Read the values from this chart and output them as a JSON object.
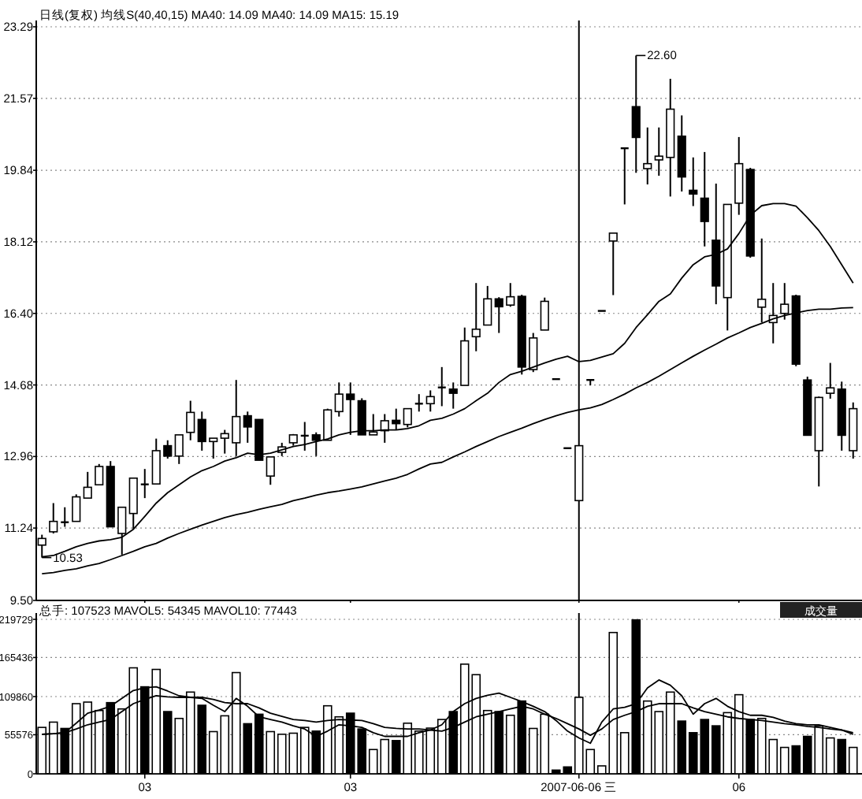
{
  "chart_data": [
    {
      "type": "candlestick",
      "title": "日线(复权)  均线S(40,40,15) MA40: 14.09 MA40: 14.09 MA15: 15.19",
      "categories": [
        null,
        null,
        null,
        null,
        null,
        null,
        null,
        null,
        null,
        "03",
        null,
        null,
        null,
        null,
        null,
        null,
        null,
        null,
        null,
        null,
        null,
        null,
        null,
        null,
        null,
        null,
        null,
        "03",
        null,
        null,
        null,
        null,
        null,
        null,
        null,
        null,
        null,
        null,
        null,
        null,
        null,
        null,
        null,
        null,
        null,
        null,
        null,
        "2007-06-06 三",
        null,
        null,
        null,
        null,
        null,
        null,
        null,
        null,
        null,
        null,
        null,
        null,
        null,
        "06",
        null,
        null,
        null,
        null,
        null,
        null,
        null,
        null,
        null,
        null
      ],
      "ohlc": [
        [
          10.83,
          11.08,
          10.53,
          10.99
        ],
        [
          11.15,
          11.84,
          11.11,
          11.4
        ],
        [
          11.38,
          11.74,
          11.27,
          11.37
        ],
        [
          11.4,
          12.05,
          11.4,
          11.99
        ],
        [
          11.96,
          12.59,
          11.96,
          12.22
        ],
        [
          12.28,
          12.78,
          12.28,
          12.72
        ],
        [
          12.72,
          12.85,
          11.27,
          11.27
        ],
        [
          11.11,
          11.74,
          10.6,
          11.74
        ],
        [
          11.59,
          12.44,
          11.21,
          12.44
        ],
        [
          12.29,
          12.66,
          11.96,
          12.27
        ],
        [
          12.3,
          13.39,
          12.3,
          13.1
        ],
        [
          13.22,
          13.35,
          12.91,
          12.97
        ],
        [
          12.97,
          13.48,
          12.78,
          13.48
        ],
        [
          13.54,
          14.3,
          13.35,
          14.02
        ],
        [
          13.85,
          14.04,
          13.1,
          13.32
        ],
        [
          13.32,
          13.4,
          12.91,
          13.4
        ],
        [
          13.4,
          13.6,
          13.03,
          13.51
        ],
        [
          13.29,
          14.8,
          12.97,
          13.92
        ],
        [
          13.94,
          14.04,
          13.29,
          13.67
        ],
        [
          13.85,
          13.85,
          12.87,
          12.87
        ],
        [
          12.49,
          12.95,
          12.28,
          12.95
        ],
        [
          13.06,
          13.29,
          12.97,
          13.19
        ],
        [
          13.29,
          13.5,
          13.22,
          13.48
        ],
        [
          13.45,
          13.79,
          13.1,
          13.46
        ],
        [
          13.48,
          13.54,
          12.97,
          13.35
        ],
        [
          13.35,
          14.11,
          13.35,
          14.08
        ],
        [
          14.04,
          14.74,
          13.92,
          14.46
        ],
        [
          14.46,
          14.74,
          13.48,
          14.33
        ],
        [
          14.3,
          14.36,
          13.48,
          13.48
        ],
        [
          13.48,
          13.98,
          13.48,
          13.55
        ],
        [
          13.58,
          13.98,
          13.29,
          13.82
        ],
        [
          13.83,
          14.11,
          13.6,
          13.75
        ],
        [
          13.73,
          14.11,
          13.66,
          14.11
        ],
        [
          14.22,
          14.46,
          14.04,
          14.23
        ],
        [
          14.23,
          14.55,
          14.04,
          14.4
        ],
        [
          14.6,
          15.11,
          14.17,
          14.62
        ],
        [
          14.58,
          14.74,
          14.11,
          14.48
        ],
        [
          14.67,
          16.06,
          14.67,
          15.74
        ],
        [
          15.84,
          17.13,
          15.49,
          16.02
        ],
        [
          16.12,
          17.06,
          16.12,
          16.75
        ],
        [
          16.75,
          16.79,
          15.93,
          16.56
        ],
        [
          16.6,
          17.13,
          16.56,
          16.8
        ],
        [
          16.81,
          16.85,
          14.93,
          15.11
        ],
        [
          15.05,
          15.93,
          14.99,
          15.81
        ],
        [
          16.0,
          16.78,
          16.0,
          16.69
        ],
        [
          14.82,
          14.82,
          14.82,
          14.82
        ],
        [
          13.16,
          13.16,
          13.16,
          13.16
        ],
        [
          11.9,
          13.22,
          11.9,
          13.22
        ],
        [
          14.8,
          14.8,
          14.67,
          14.8
        ],
        [
          16.46,
          16.46,
          16.46,
          16.46
        ],
        [
          18.14,
          18.33,
          16.84,
          18.33
        ],
        [
          20.37,
          20.37,
          19.02,
          20.37
        ],
        [
          21.37,
          22.6,
          19.78,
          20.63
        ],
        [
          19.88,
          20.87,
          19.5,
          20.0
        ],
        [
          20.09,
          20.87,
          19.71,
          20.18
        ],
        [
          20.15,
          22.04,
          19.21,
          21.31
        ],
        [
          20.66,
          21.16,
          19.33,
          19.68
        ],
        [
          19.36,
          20.15,
          18.98,
          19.27
        ],
        [
          19.17,
          20.28,
          18.01,
          18.61
        ],
        [
          18.16,
          19.52,
          16.62,
          17.06
        ],
        [
          16.78,
          19.02,
          15.99,
          19.02
        ],
        [
          19.05,
          20.64,
          18.77,
          20.0
        ],
        [
          19.86,
          19.9,
          17.74,
          17.78
        ],
        [
          16.55,
          18.2,
          16.18,
          16.74
        ],
        [
          16.18,
          17.13,
          15.68,
          16.35
        ],
        [
          16.4,
          17.13,
          16.25,
          16.62
        ],
        [
          16.82,
          16.85,
          15.13,
          15.18
        ],
        [
          14.8,
          14.88,
          13.47,
          13.47
        ],
        [
          13.1,
          14.4,
          12.24,
          14.38
        ],
        [
          14.48,
          15.21,
          14.35,
          14.61
        ],
        [
          14.58,
          14.76,
          13.1,
          13.47
        ],
        [
          13.1,
          14.26,
          12.91,
          14.11
        ]
      ],
      "colors": [
        "#ffffff",
        "#ffffff",
        "#000000",
        "#ffffff",
        "#ffffff",
        "#ffffff",
        "#000000",
        "#ffffff",
        "#ffffff",
        "#000000",
        "#ffffff",
        "#000000",
        "#ffffff",
        "#ffffff",
        "#000000",
        "#ffffff",
        "#ffffff",
        "#ffffff",
        "#000000",
        "#000000",
        "#ffffff",
        "#ffffff",
        "#ffffff",
        "#000000",
        "#000000",
        "#ffffff",
        "#ffffff",
        "#000000",
        "#000000",
        "#ffffff",
        "#ffffff",
        "#000000",
        "#ffffff",
        "#000000",
        "#ffffff",
        "#000000",
        "#000000",
        "#ffffff",
        "#ffffff",
        "#ffffff",
        "#000000",
        "#ffffff",
        "#000000",
        "#ffffff",
        "#ffffff",
        "#000000",
        "#000000",
        "#ffffff",
        "#000000",
        "#000000",
        "#ffffff",
        "#000000",
        "#000000",
        "#ffffff",
        "#ffffff",
        "#ffffff",
        "#000000",
        "#000000",
        "#000000",
        "#000000",
        "#ffffff",
        "#ffffff",
        "#000000",
        "#ffffff",
        "#ffffff",
        "#ffffff",
        "#000000",
        "#000000",
        "#ffffff",
        "#ffffff",
        "#000000",
        "#ffffff"
      ],
      "series": [
        {
          "type": "line",
          "color": "#000000",
          "values": [
            10.55,
            10.58,
            10.68,
            10.79,
            10.87,
            10.93,
            10.96,
            11.02,
            11.21,
            11.52,
            11.84,
            12.09,
            12.28,
            12.47,
            12.62,
            12.72,
            12.85,
            12.93,
            13.04,
            13.0,
            13.04,
            13.12,
            13.2,
            13.25,
            13.32,
            13.38,
            13.48,
            13.54,
            13.58,
            13.58,
            13.6,
            13.6,
            13.63,
            13.7,
            13.83,
            13.88,
            13.98,
            14.11,
            14.3,
            14.48,
            14.74,
            14.93,
            15.01,
            15.11,
            15.21,
            15.3,
            15.37,
            15.24,
            15.27,
            15.35,
            15.43,
            15.68,
            16.06,
            16.37,
            16.69,
            16.87,
            17.25,
            17.57,
            17.76,
            17.82,
            17.95,
            18.32,
            18.76,
            18.99,
            19.04,
            19.04,
            18.98,
            18.7,
            18.39,
            18.01,
            17.57,
            17.13
          ]
        },
        {
          "type": "line",
          "color": "#000000",
          "values": [
            10.14,
            10.17,
            10.22,
            10.26,
            10.33,
            10.39,
            10.48,
            10.58,
            10.68,
            10.79,
            10.87,
            11.0,
            11.11,
            11.21,
            11.31,
            11.4,
            11.49,
            11.56,
            11.62,
            11.69,
            11.75,
            11.81,
            11.9,
            11.96,
            12.03,
            12.09,
            12.13,
            12.18,
            12.23,
            12.3,
            12.37,
            12.44,
            12.53,
            12.66,
            12.78,
            12.82,
            12.95,
            13.07,
            13.2,
            13.32,
            13.44,
            13.54,
            13.64,
            13.75,
            13.85,
            13.94,
            14.02,
            14.08,
            14.13,
            14.21,
            14.33,
            14.46,
            14.61,
            14.74,
            14.89,
            15.05,
            15.21,
            15.37,
            15.52,
            15.66,
            15.81,
            15.93,
            16.06,
            16.16,
            16.27,
            16.35,
            16.41,
            16.47,
            16.5,
            16.5,
            16.53,
            16.54
          ]
        }
      ],
      "ylim": [
        9.5,
        23.29
      ],
      "yticks": [
        {
          "value": 9.5,
          "label": "9.50"
        },
        11.24,
        12.96,
        14.68,
        {
          "value": 16.4,
          "label": "16.40"
        },
        18.12,
        19.84,
        21.57,
        23.29
      ],
      "grid": "y",
      "tick_labels": "y",
      "ref_lines": [
        {
          "axis": "x",
          "value": "2007-06-06 三",
          "color": "#000000"
        }
      ],
      "annotations": [
        "22.60",
        "10.53"
      ]
    },
    {
      "type": "bar",
      "title": "总手: 107523 MAVOL5: 54345 MAVOL10: 77443",
      "categories": [
        null,
        null,
        null,
        null,
        null,
        null,
        null,
        null,
        null,
        "03",
        null,
        null,
        null,
        null,
        null,
        null,
        null,
        null,
        null,
        null,
        null,
        null,
        null,
        null,
        null,
        null,
        null,
        "03",
        null,
        null,
        null,
        null,
        null,
        null,
        null,
        null,
        null,
        null,
        null,
        null,
        null,
        null,
        null,
        null,
        null,
        null,
        null,
        "2007-06-06 三",
        null,
        null,
        null,
        null,
        null,
        null,
        null,
        null,
        null,
        null,
        null,
        null,
        null,
        "06",
        null,
        null,
        null,
        null,
        null,
        null,
        null,
        null,
        null,
        null
      ],
      "series": [
        {
          "type": "bar",
          "colors": [
            "#ffffff",
            "#ffffff",
            "#000000",
            "#ffffff",
            "#ffffff",
            "#ffffff",
            "#000000",
            "#ffffff",
            "#ffffff",
            "#000000",
            "#ffffff",
            "#000000",
            "#ffffff",
            "#ffffff",
            "#000000",
            "#ffffff",
            "#ffffff",
            "#ffffff",
            "#000000",
            "#000000",
            "#ffffff",
            "#ffffff",
            "#ffffff",
            "#ffffff",
            "#000000",
            "#ffffff",
            "#ffffff",
            "#000000",
            "#000000",
            "#ffffff",
            "#ffffff",
            "#000000",
            "#ffffff",
            "#ffffff",
            "#ffffff",
            "#ffffff",
            "#000000",
            "#ffffff",
            "#ffffff",
            "#ffffff",
            "#000000",
            "#ffffff",
            "#000000",
            "#ffffff",
            "#ffffff",
            "#000000",
            "#000000",
            "#ffffff",
            "#ffffff",
            "#ffffff",
            "#ffffff",
            "#ffffff",
            "#000000",
            "#ffffff",
            "#ffffff",
            "#ffffff",
            "#000000",
            "#000000",
            "#000000",
            "#000000",
            "#ffffff",
            "#ffffff",
            "#000000",
            "#ffffff",
            "#ffffff",
            "#ffffff",
            "#000000",
            "#000000",
            "#ffffff",
            "#ffffff",
            "#000000",
            "#ffffff"
          ],
          "values": [
            66000,
            73500,
            64500,
            99750,
            102000,
            90000,
            101250,
            92250,
            150750,
            123750,
            148500,
            88500,
            78750,
            116250,
            97500,
            60000,
            82500,
            144000,
            71250,
            84750,
            60000,
            56250,
            57750,
            66000,
            60750,
            96750,
            81000,
            86250,
            63750,
            34500,
            48750,
            47250,
            72000,
            60750,
            65000,
            77250,
            88500,
            156000,
            141000,
            90000,
            88500,
            83250,
            103500,
            64500,
            84750,
            5250,
            9750,
            108750,
            34500,
            11250,
            201000,
            58500,
            219000,
            103500,
            88500,
            116250,
            75000,
            58500,
            77250,
            68250,
            87000,
            112500,
            77250,
            78750,
            48750,
            37500,
            39750,
            53250,
            68250,
            51000,
            48750,
            37500
          ]
        },
        {
          "type": "line",
          "color": "#000000",
          "values": [
            56250,
            57000,
            58500,
            72000,
            86250,
            90750,
            96000,
            107250,
            118500,
            122250,
            123750,
            117750,
            111000,
            108750,
            107250,
            97500,
            88500,
            107250,
            96000,
            81000,
            77250,
            73500,
            68250,
            63750,
            53250,
            60750,
            69750,
            68250,
            66000,
            58500,
            53250,
            53250,
            53250,
            58500,
            62250,
            69750,
            88500,
            99750,
            107250,
            111750,
            114750,
            108750,
            102750,
            96000,
            88500,
            75750,
            60750,
            51000,
            43500,
            73500,
            92250,
            94500,
            99750,
            122250,
            133500,
            126000,
            111000,
            84750,
            99750,
            107250,
            96000,
            88500,
            83250,
            83250,
            80250,
            75000,
            71250,
            69750,
            69750,
            66000,
            62250,
            58500
          ]
        },
        {
          "type": "line",
          "color": "#000000",
          "values": [
            56250,
            57000,
            58500,
            63750,
            69750,
            73500,
            77250,
            88500,
            99750,
            105750,
            111000,
            109500,
            108750,
            108750,
            108750,
            105750,
            101250,
            99750,
            99750,
            93750,
            86250,
            81750,
            77250,
            75750,
            73500,
            75750,
            77250,
            76500,
            75750,
            71250,
            66000,
            64500,
            63750,
            63750,
            62250,
            60750,
            66000,
            73500,
            81000,
            84750,
            88500,
            92250,
            96000,
            92250,
            84750,
            78750,
            71250,
            63750,
            54750,
            63750,
            77250,
            83250,
            88500,
            96000,
            99750,
            99750,
            99750,
            93750,
            88500,
            84750,
            81000,
            78750,
            77250,
            75750,
            73500,
            71250,
            69750,
            67500,
            66000,
            63750,
            62250,
            56250
          ]
        }
      ],
      "ylim": [
        0,
        219729
      ],
      "yticks": [
        0,
        55576,
        109860,
        165436,
        219729
      ],
      "grid": "y",
      "ref_lines": [
        {
          "axis": "x",
          "value": "2007-06-06 三",
          "color": "#000000"
        }
      ],
      "annotations": [
        "成交量"
      ]
    }
  ]
}
